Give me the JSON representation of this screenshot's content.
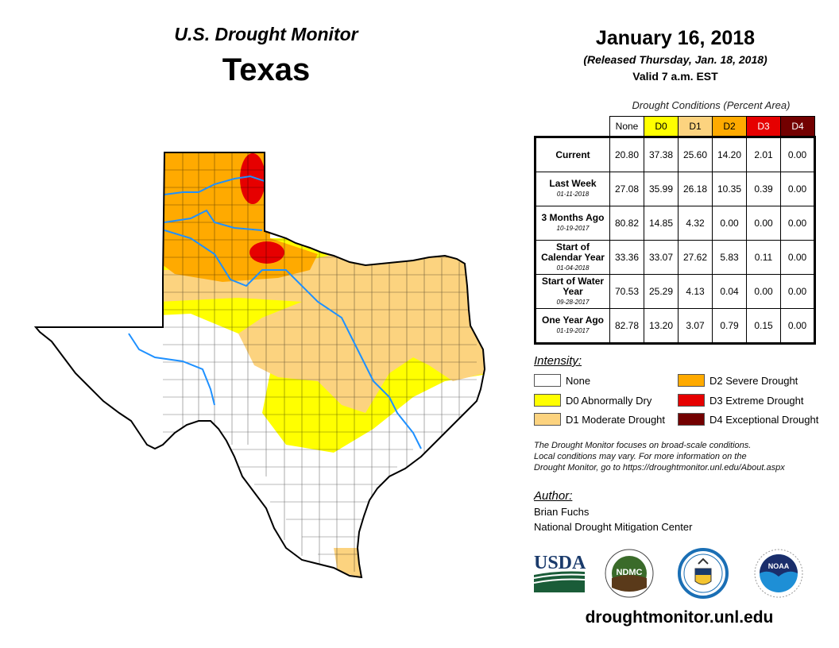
{
  "header": {
    "title": "U.S. Drought Monitor",
    "state": "Texas",
    "date": "January 16, 2018",
    "released": "(Released Thursday, Jan. 18, 2018)",
    "valid": "Valid 7 a.m. EST"
  },
  "table": {
    "caption": "Drought Conditions (Percent Area)",
    "columns": [
      "None",
      "D0",
      "D1",
      "D2",
      "D3",
      "D4"
    ],
    "column_colors": [
      "#ffffff",
      "#ffff00",
      "#fcd37f",
      "#ffaa00",
      "#e60000",
      "#730000"
    ],
    "rows": [
      {
        "label": "Current",
        "sub": "",
        "values": [
          "20.80",
          "37.38",
          "25.60",
          "14.20",
          "2.01",
          "0.00"
        ]
      },
      {
        "label": "Last Week",
        "sub": "01-11-2018",
        "values": [
          "27.08",
          "35.99",
          "26.18",
          "10.35",
          "0.39",
          "0.00"
        ]
      },
      {
        "label": "3 Months Ago",
        "sub": "10-19-2017",
        "values": [
          "80.82",
          "14.85",
          "4.32",
          "0.00",
          "0.00",
          "0.00"
        ]
      },
      {
        "label": "Start of Calendar Year",
        "sub": "01-04-2018",
        "values": [
          "33.36",
          "33.07",
          "27.62",
          "5.83",
          "0.11",
          "0.00"
        ]
      },
      {
        "label": "Start of Water Year",
        "sub": "09-28-2017",
        "values": [
          "70.53",
          "25.29",
          "4.13",
          "0.04",
          "0.00",
          "0.00"
        ]
      },
      {
        "label": "One Year Ago",
        "sub": "01-19-2017",
        "values": [
          "82.78",
          "13.20",
          "3.07",
          "0.79",
          "0.15",
          "0.00"
        ]
      }
    ]
  },
  "legend": {
    "title": "Intensity:",
    "items": [
      {
        "label": "None",
        "color": "#ffffff"
      },
      {
        "label": "D0 Abnormally Dry",
        "color": "#ffff00"
      },
      {
        "label": "D1 Moderate Drought",
        "color": "#fcd37f"
      },
      {
        "label": "D2 Severe Drought",
        "color": "#ffaa00"
      },
      {
        "label": "D3 Extreme Drought",
        "color": "#e60000"
      },
      {
        "label": "D4 Exceptional Drought",
        "color": "#730000"
      }
    ]
  },
  "note": {
    "line1": "The Drought Monitor focuses on broad-scale conditions.",
    "line2": "Local conditions may vary. For more information on the",
    "line3": "Drought Monitor, go to https://droughtmonitor.unl.edu/About.aspx"
  },
  "author": {
    "title": "Author:",
    "name": "Brian Fuchs",
    "org": "National Drought Mitigation Center"
  },
  "logos": {
    "usda": "USDA",
    "ndmc": "NDMC",
    "noaa": "NOAA"
  },
  "website": "droughtmonitor.unl.edu",
  "map_colors": {
    "none": "#ffffff",
    "d0": "#ffff00",
    "d1": "#fcd37f",
    "d2": "#ffaa00",
    "d3": "#e60000",
    "river": "#1e90ff"
  }
}
